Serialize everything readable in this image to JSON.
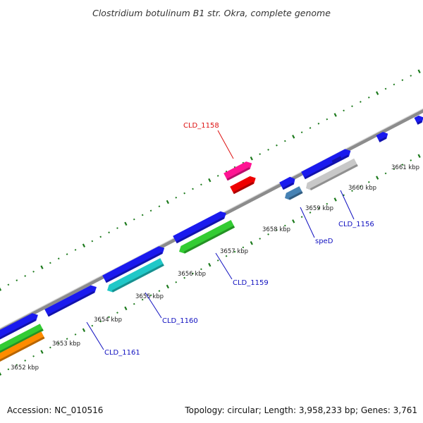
{
  "title": "Clostridium botulinum B1 str. Okra, complete genome",
  "footer": {
    "accession": "Accession: NC_010516",
    "summary": "Topology: circular; Length: 3,958,233 bp; Genes: 3,761"
  },
  "colors": {
    "backbone": "#8c8c8c",
    "tick": "#1c7a1c",
    "label_forward": "#1010c0",
    "label_highlight": "#dd1111"
  },
  "kbp_ticks": [
    {
      "label": "3652 kbp"
    },
    {
      "label": "3653 kbp"
    },
    {
      "label": "3654 kbp"
    },
    {
      "label": "3655 kbp"
    },
    {
      "label": "3656 kbp"
    },
    {
      "label": "3657 kbp"
    },
    {
      "label": "3658 kbp"
    },
    {
      "label": "3659 kbp"
    },
    {
      "label": "3660 kbp"
    },
    {
      "label": "3661 kbp"
    }
  ],
  "gene_labels": [
    {
      "text": "CLD_1158",
      "color": "#dd1111"
    },
    {
      "text": "CLD_1156",
      "color": "#1010c0"
    },
    {
      "text": "speD",
      "color": "#1010c0"
    },
    {
      "text": "CLD_1159",
      "color": "#1010c0"
    },
    {
      "text": "CLD_1160",
      "color": "#1010c0"
    },
    {
      "text": "CLD_1161",
      "color": "#1010c0"
    }
  ],
  "genes": [
    {
      "color": "#ff1493",
      "strand": "forward"
    },
    {
      "color": "#ee0000",
      "strand": "forward"
    },
    {
      "color": "#1a1aee",
      "strand": "forward"
    },
    {
      "color": "#1a1aee",
      "strand": "forward"
    },
    {
      "color": "#1a1aee",
      "strand": "forward"
    },
    {
      "color": "#1a1aee",
      "strand": "forward"
    },
    {
      "color": "#1a1aee",
      "strand": "forward"
    },
    {
      "color": "#1a1aee",
      "strand": "forward"
    },
    {
      "color": "#1a1aee",
      "strand": "forward"
    },
    {
      "color": "#1a1aee",
      "strand": "forward"
    },
    {
      "color": "#1a1aee",
      "strand": "forward"
    },
    {
      "color": "#c8c8c8",
      "strand": "reverse"
    },
    {
      "color": "#4682b4",
      "strand": "reverse"
    },
    {
      "color": "#33cc33",
      "strand": "reverse"
    },
    {
      "color": "#20c8c8",
      "strand": "reverse"
    },
    {
      "color": "#33cc33",
      "strand": "reverse"
    },
    {
      "color": "#ff8c00",
      "strand": "reverse"
    }
  ]
}
